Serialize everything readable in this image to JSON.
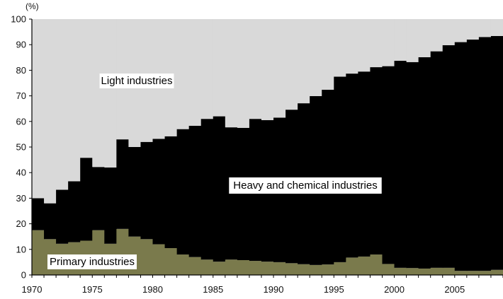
{
  "chart_data": {
    "type": "area",
    "stacked": true,
    "percent_stacked": true,
    "unit_label": "(%)",
    "xlabel": "",
    "ylabel": "",
    "xlim": [
      1970,
      2008
    ],
    "ylim": [
      0,
      100
    ],
    "x_ticks": [
      1970,
      1975,
      1980,
      1985,
      1990,
      1995,
      2000,
      2005
    ],
    "y_ticks": [
      0,
      10,
      20,
      30,
      40,
      50,
      60,
      70,
      80,
      90,
      100
    ],
    "grid": false,
    "legend": "labels inside areas",
    "years": [
      1970,
      1971,
      1972,
      1973,
      1974,
      1975,
      1976,
      1977,
      1978,
      1979,
      1980,
      1981,
      1982,
      1983,
      1984,
      1985,
      1986,
      1987,
      1988,
      1989,
      1990,
      1991,
      1992,
      1993,
      1994,
      1995,
      1996,
      1997,
      1998,
      1999,
      2000,
      2001,
      2002,
      2003,
      2004,
      2005,
      2006,
      2007,
      2008
    ],
    "series": [
      {
        "name": "Primary industries",
        "color": "#7a7a4c",
        "values": [
          17.5,
          14,
          12.2,
          12.8,
          13.4,
          17.5,
          12.2,
          18,
          15,
          14,
          12,
          10.5,
          8,
          7,
          6,
          5.2,
          6,
          5.8,
          5.5,
          5.2,
          5,
          4.6,
          4.2,
          3.9,
          4.1,
          5,
          6.8,
          7.2,
          8,
          4.3,
          2.8,
          2.7,
          2.5,
          2.8,
          2.8,
          1.6,
          1.6,
          1.6,
          2
        ]
      },
      {
        "name": "Heavy and chemical industries",
        "color": "#000000",
        "values": [
          12.5,
          14,
          21.1,
          23.8,
          32.4,
          24.7,
          29.8,
          35,
          35,
          38,
          41.2,
          43.7,
          49,
          51.3,
          55,
          56.8,
          51.7,
          51.7,
          55.5,
          55.3,
          56.5,
          60,
          62.9,
          66,
          68.3,
          72.5,
          71.9,
          72.3,
          73.2,
          77.3,
          80.9,
          80.5,
          82.6,
          84.6,
          87,
          89.4,
          90.4,
          91.4,
          91.4
        ]
      },
      {
        "name": "Light industries",
        "color": "#d9d9d9",
        "values": [
          70,
          72,
          66.7,
          63.4,
          54.2,
          57.8,
          58,
          47,
          50,
          48,
          46.8,
          45.8,
          43,
          41.7,
          39,
          38,
          42.3,
          42.5,
          39,
          39.5,
          38.5,
          35.4,
          32.9,
          30.1,
          27.6,
          22.5,
          21.3,
          20.5,
          18.8,
          18.4,
          16.3,
          16.8,
          14.9,
          12.6,
          10.2,
          9,
          8,
          7,
          6.6
        ]
      }
    ],
    "annotations": {
      "light": "Light industries",
      "heavy": "Heavy and chemical industries",
      "primary": "Primary industries"
    }
  }
}
